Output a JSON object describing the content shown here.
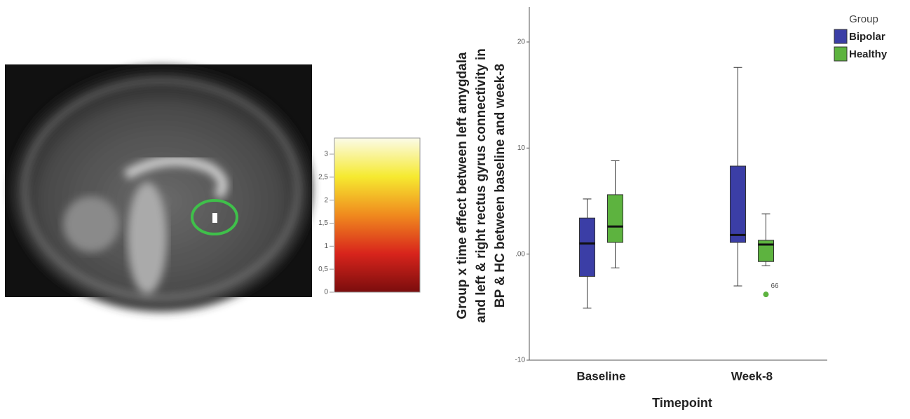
{
  "chart_data": {
    "type": "box",
    "y_label": [
      "Group x time effect between left amygdala",
      "and left & right rectus gyrus connectivity in",
      "BP & HC between baseline and week-8"
    ],
    "x_label": "Timepoint",
    "categories": [
      "Baseline",
      "Week-8"
    ],
    "legend_title": "Group",
    "series": [
      {
        "name": "Bipolar",
        "color": "#3b3ea6",
        "boxes": [
          {
            "min": -5.1,
            "q1": -2.1,
            "median": 1.0,
            "q3": 3.4,
            "max": 5.2
          },
          {
            "min": -3.0,
            "q1": 1.1,
            "median": 1.8,
            "q3": 8.3,
            "max": 17.6
          }
        ]
      },
      {
        "name": "Healthy",
        "color": "#5db33f",
        "boxes": [
          {
            "min": -1.3,
            "q1": 1.1,
            "median": 2.6,
            "q3": 5.6,
            "max": 8.8
          },
          {
            "min": -1.1,
            "q1": -0.7,
            "median": 0.9,
            "q3": 1.3,
            "max": 3.8
          }
        ],
        "outliers": [
          {
            "category": 1,
            "value": -3.8,
            "label": "66"
          }
        ]
      }
    ],
    "ylim": [
      -10,
      23.3
    ],
    "yticks": [
      -10,
      {
        "value": 0,
        "label": ".00"
      },
      10,
      20
    ]
  },
  "colorbar": {
    "range": [
      0,
      3.35
    ],
    "ticks": [
      {
        "value": 0,
        "label": "0"
      },
      {
        "value": 0.5,
        "label": "0,5"
      },
      {
        "value": 1,
        "label": "1"
      },
      {
        "value": 1.5,
        "label": "1,5"
      },
      {
        "value": 2,
        "label": "2"
      },
      {
        "value": 2.5,
        "label": "2,5"
      },
      {
        "value": 3,
        "label": "3"
      }
    ]
  }
}
